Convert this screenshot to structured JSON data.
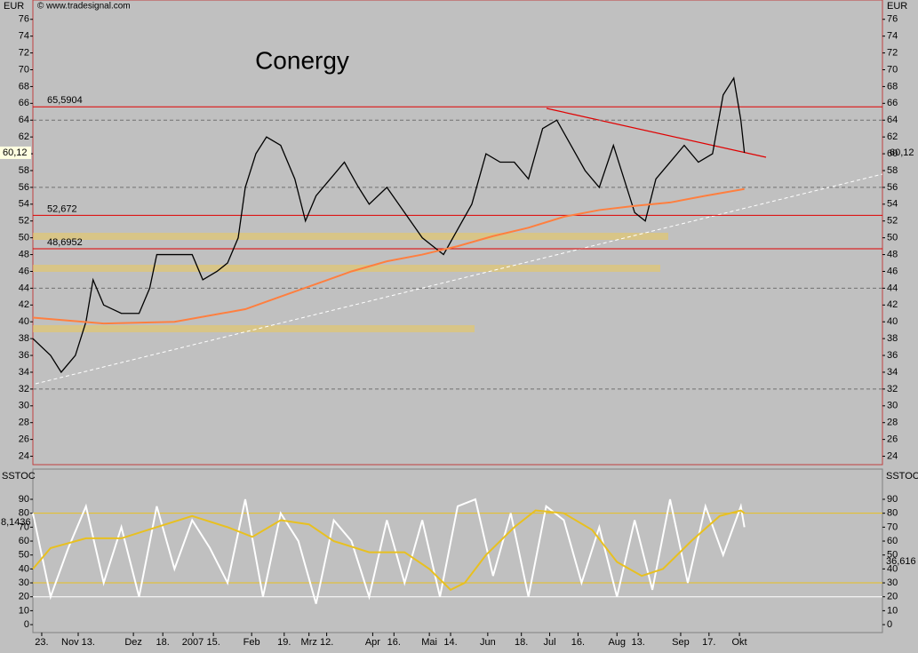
{
  "chart_data": [
    {
      "type": "line",
      "title": "Conergy",
      "ylabel": "EUR",
      "source": "© www.tradesignal.com",
      "xlim": [
        0,
        240
      ],
      "ylim": [
        23,
        78.3
      ],
      "yticks": [
        24,
        26,
        28,
        30,
        32,
        34,
        36,
        38,
        40,
        42,
        44,
        46,
        48,
        50,
        52,
        54,
        56,
        58,
        60,
        62,
        64,
        66,
        68,
        70,
        72,
        74,
        76
      ],
      "grid_lines": [
        32,
        44,
        56,
        64
      ],
      "xticks": [
        {
          "value": 2.5,
          "label": "23."
        },
        {
          "value": 12.8,
          "label": "Nov 13."
        },
        {
          "value": 28.4,
          "label": "Dez"
        },
        {
          "value": 36.7,
          "label": "18."
        },
        {
          "value": 45.2,
          "label": "2007"
        },
        {
          "value": 51,
          "label": "15."
        },
        {
          "value": 61.8,
          "label": "Feb"
        },
        {
          "value": 71,
          "label": "19."
        },
        {
          "value": 78,
          "label": "Mrz"
        },
        {
          "value": 83,
          "label": "12."
        },
        {
          "value": 96,
          "label": "Apr"
        },
        {
          "value": 102,
          "label": "16."
        },
        {
          "value": 112,
          "label": "Mai"
        },
        {
          "value": 118,
          "label": "14."
        },
        {
          "value": 128.5,
          "label": "Jun"
        },
        {
          "value": 138,
          "label": "18."
        },
        {
          "value": 146,
          "label": "Jul"
        },
        {
          "value": 154,
          "label": "16."
        },
        {
          "value": 165,
          "label": "Aug"
        },
        {
          "value": 171,
          "label": "13."
        },
        {
          "value": 183,
          "label": "Sep"
        },
        {
          "value": 191,
          "label": "17."
        },
        {
          "value": 199.6,
          "label": "Okt"
        }
      ],
      "levels": [
        {
          "value": 65.5904,
          "label": "65,5904"
        },
        {
          "value": 52.672,
          "label": "52,672"
        },
        {
          "value": 48.6952,
          "label": "48,6952"
        }
      ],
      "level_color": "#e00000",
      "last": {
        "value": 60.12,
        "label": "60,12"
      },
      "series": [
        {
          "color": "#000000",
          "x": [
            0,
            5,
            8,
            12,
            15,
            17,
            20,
            25,
            30,
            33,
            35,
            40,
            45,
            48,
            52,
            55,
            58,
            60,
            63,
            66,
            70,
            74,
            77,
            80,
            84,
            88,
            92,
            95,
            100,
            105,
            110,
            113,
            116,
            120,
            124,
            128,
            132,
            136,
            140,
            144,
            148,
            152,
            156,
            160,
            164,
            167,
            170,
            173,
            176,
            180,
            184,
            188,
            192,
            195,
            198,
            200,
            201
          ],
          "values": [
            38,
            36,
            34,
            36,
            40,
            45,
            42,
            41,
            41,
            44,
            48,
            48,
            48,
            45,
            46,
            47,
            50,
            56,
            60,
            62,
            61,
            57,
            52,
            55,
            57,
            59,
            56,
            54,
            56,
            53,
            50,
            49,
            48,
            51,
            54,
            60,
            59,
            59,
            57,
            63,
            64,
            61,
            58,
            56,
            61,
            57,
            53,
            52,
            57,
            59,
            61,
            59,
            60,
            67,
            69,
            64,
            60.12
          ]
        },
        {
          "color": "#ff7f3f",
          "x": [
            0,
            20,
            40,
            60,
            70,
            80,
            90,
            100,
            110,
            120,
            130,
            140,
            150,
            160,
            170,
            180,
            190,
            201
          ],
          "values": [
            40.5,
            39.8,
            40,
            41.5,
            43,
            44.5,
            46,
            47.2,
            48,
            49,
            50.2,
            51.2,
            52.5,
            53.3,
            53.8,
            54.2,
            55,
            55.8
          ]
        }
      ]
    },
    {
      "type": "line",
      "ylabel": "SSTOC",
      "xlim": [
        0,
        240
      ],
      "ylim": [
        -5.7,
        111.7
      ],
      "yticks": [
        0,
        10,
        20,
        30,
        40,
        50,
        60,
        70,
        80,
        90
      ],
      "levels": [
        {
          "value": 20,
          "color": "#ffffff"
        },
        {
          "value": 30,
          "color": "#e8c020"
        },
        {
          "value": 80,
          "color": "#e8c020"
        }
      ],
      "annotations": [
        "8,1436",
        "36,616"
      ],
      "series": [
        {
          "color": "#ffffff",
          "x": [
            0,
            5,
            10,
            15,
            20,
            25,
            30,
            35,
            40,
            45,
            50,
            55,
            60,
            65,
            70,
            75,
            80,
            85,
            90,
            95,
            100,
            105,
            110,
            115,
            120,
            125,
            130,
            135,
            140,
            145,
            150,
            155,
            160,
            165,
            170,
            175,
            180,
            185,
            190,
            195,
            200,
            201
          ],
          "values": [
            80,
            20,
            55,
            85,
            30,
            70,
            20,
            85,
            40,
            75,
            55,
            30,
            90,
            20,
            80,
            60,
            15,
            75,
            60,
            20,
            75,
            30,
            75,
            20,
            85,
            90,
            35,
            80,
            20,
            85,
            75,
            30,
            70,
            20,
            75,
            25,
            90,
            30,
            85,
            50,
            85,
            70
          ]
        },
        {
          "color": "#e8c020",
          "x": [
            0,
            5,
            15,
            25,
            35,
            45,
            55,
            62,
            70,
            78,
            85,
            95,
            105,
            112,
            118,
            122,
            128,
            136,
            142,
            150,
            158,
            165,
            172,
            178,
            186,
            194,
            200,
            201
          ],
          "values": [
            40,
            55,
            62,
            62,
            70,
            78,
            70,
            63,
            75,
            72,
            60,
            52,
            52,
            40,
            25,
            30,
            50,
            70,
            82,
            80,
            68,
            45,
            35,
            40,
            60,
            78,
            82,
            80
          ]
        }
      ]
    }
  ]
}
